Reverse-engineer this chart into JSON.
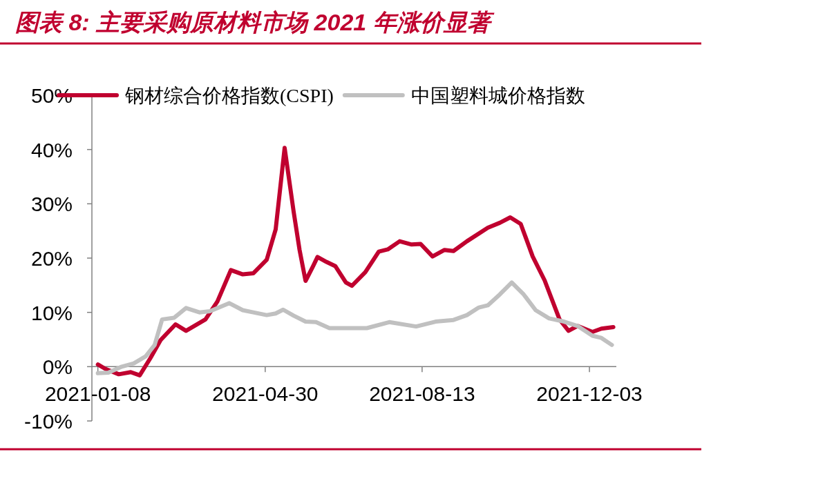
{
  "chart_data": {
    "type": "line",
    "title": "图表 8: 主要采购原材料市场 2021 年涨价显著",
    "xlim": [
      "2021-01-04",
      "2021-12-21"
    ],
    "xticks": [
      "2021-01-08",
      "2021-04-30",
      "2021-08-13",
      "2021-12-03"
    ],
    "ylim": [
      -10,
      50
    ],
    "yticks": [
      {
        "value": -10,
        "label": "-10%"
      },
      {
        "value": 0,
        "label": "0%"
      },
      {
        "value": 10,
        "label": "10%"
      },
      {
        "value": 20,
        "label": "20%"
      },
      {
        "value": 30,
        "label": "30%"
      },
      {
        "value": 40,
        "label": "40%"
      },
      {
        "value": 50,
        "label": "50%"
      }
    ],
    "legend": "top",
    "series": [
      {
        "name": "钢材综合价格指数(CSPI)",
        "color": "#c0002f",
        "x": [
          "2021-01-08",
          "2021-01-13",
          "2021-01-22",
          "2021-01-30",
          "2021-02-05",
          "2021-02-12",
          "2021-02-19",
          "2021-03-01",
          "2021-03-08",
          "2021-03-21",
          "2021-03-29",
          "2021-04-07",
          "2021-04-15",
          "2021-04-22",
          "2021-05-01",
          "2021-05-07",
          "2021-05-13",
          "2021-05-19",
          "2021-05-23",
          "2021-05-27",
          "2021-06-01",
          "2021-06-04",
          "2021-06-10",
          "2021-06-16",
          "2021-06-23",
          "2021-06-27",
          "2021-07-06",
          "2021-07-15",
          "2021-07-21",
          "2021-07-29",
          "2021-08-06",
          "2021-08-12",
          "2021-08-20",
          "2021-08-28",
          "2021-09-03",
          "2021-09-12",
          "2021-09-26",
          "2021-10-04",
          "2021-10-11",
          "2021-10-18",
          "2021-10-26",
          "2021-11-03",
          "2021-11-13",
          "2021-11-19",
          "2021-11-25",
          "2021-12-05",
          "2021-12-11",
          "2021-12-19"
        ],
        "values": [
          0.4,
          -0.4,
          -1.4,
          -1.0,
          -1.6,
          1.5,
          4.9,
          7.8,
          6.6,
          8.7,
          12.0,
          17.8,
          17.0,
          17.2,
          19.7,
          25.3,
          40.3,
          28.6,
          21.5,
          15.8,
          18.5,
          20.2,
          19.3,
          18.5,
          15.5,
          14.9,
          17.4,
          21.2,
          21.6,
          23.1,
          22.5,
          22.6,
          20.3,
          21.5,
          21.3,
          23.1,
          25.6,
          26.5,
          27.5,
          26.3,
          20.3,
          15.9,
          8.7,
          6.6,
          7.5,
          6.4,
          7.0,
          7.3
        ]
      },
      {
        "name": "中国塑料城价格指数",
        "color": "#c0c0c0",
        "x": [
          "2021-01-08",
          "2021-01-15",
          "2021-01-24",
          "2021-02-01",
          "2021-02-09",
          "2021-02-15",
          "2021-02-20",
          "2021-02-28",
          "2021-03-08",
          "2021-03-17",
          "2021-03-24",
          "2021-04-06",
          "2021-04-15",
          "2021-04-22",
          "2021-05-01",
          "2021-05-07",
          "2021-05-12",
          "2021-05-19",
          "2021-05-27",
          "2021-06-03",
          "2021-06-12",
          "2021-06-20",
          "2021-06-29",
          "2021-07-07",
          "2021-07-22",
          "2021-08-09",
          "2021-08-22",
          "2021-09-03",
          "2021-09-12",
          "2021-09-20",
          "2021-09-26",
          "2021-10-04",
          "2021-10-12",
          "2021-10-20",
          "2021-10-28",
          "2021-11-06",
          "2021-11-16",
          "2021-11-25",
          "2021-12-05",
          "2021-12-11",
          "2021-12-18"
        ],
        "values": [
          -1.2,
          -1.1,
          0.0,
          0.6,
          1.9,
          4.0,
          8.7,
          9.0,
          10.8,
          10.0,
          10.2,
          11.7,
          10.4,
          10.0,
          9.5,
          9.8,
          10.5,
          9.4,
          8.3,
          8.2,
          7.1,
          7.1,
          7.1,
          7.1,
          8.2,
          7.4,
          8.3,
          8.6,
          9.5,
          10.9,
          11.3,
          13.3,
          15.5,
          13.3,
          10.4,
          8.9,
          8.3,
          7.5,
          5.7,
          5.3,
          4.0
        ]
      }
    ]
  }
}
